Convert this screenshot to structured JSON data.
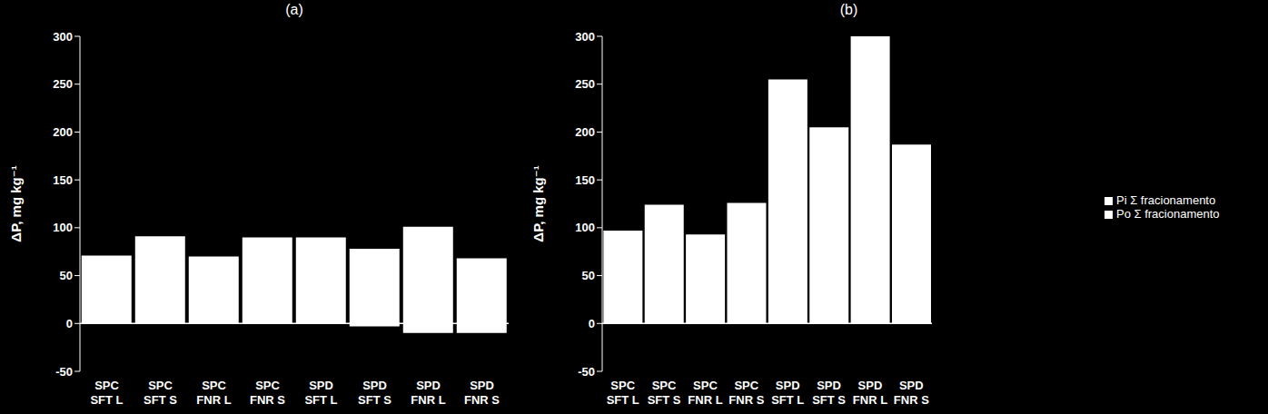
{
  "chart_data": [
    {
      "type": "bar",
      "title": "(a)",
      "y_label": "ΔP, mg kg⁻¹",
      "stacked": true,
      "categories": [
        "SPC SFT L",
        "SPC SFT S",
        "SPC FNR L",
        "SPC FNR S",
        "SPD SFT L",
        "SPD SFT S",
        "SPD FNR L",
        "SPD FNR S"
      ],
      "series": [
        {
          "name": "Po Σ fracionamento",
          "color": "#ffffff",
          "values": [
            0,
            0,
            0,
            0,
            0,
            -3,
            -10,
            -10
          ]
        },
        {
          "name": "Pi Σ fracionamento",
          "color": "#ffffff",
          "values": [
            71,
            91,
            70,
            90,
            90,
            78,
            101,
            68
          ]
        }
      ],
      "ylim": [
        -50,
        300
      ],
      "yticks": [
        -50,
        0,
        50,
        100,
        150,
        200,
        250,
        300
      ]
    },
    {
      "type": "bar",
      "title": "(b)",
      "y_label": "ΔP, mg kg⁻¹",
      "stacked": true,
      "legend": "right",
      "categories": [
        "SPC SFT L",
        "SPC SFT S",
        "SPC FNR L",
        "SPC FNR S",
        "SPD SFT L",
        "SPD SFT S",
        "SPD FNR L",
        "SPD FNR S"
      ],
      "series": [
        {
          "name": "Po Σ fracionamento",
          "color": "#ffffff",
          "values": [
            0,
            0,
            0,
            0,
            0,
            0,
            0,
            0
          ]
        },
        {
          "name": "Pi Σ fracionamento",
          "color": "#ffffff",
          "values": [
            97,
            124,
            93,
            126,
            255,
            205,
            300,
            187
          ]
        }
      ],
      "ylim": [
        -50,
        300
      ],
      "yticks": [
        -50,
        0,
        50,
        100,
        150,
        200,
        250,
        300
      ]
    }
  ]
}
